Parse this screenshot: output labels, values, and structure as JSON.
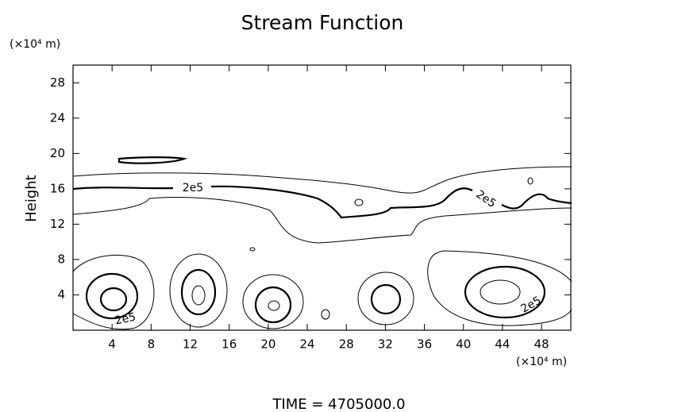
{
  "chart_data": {
    "type": "contour",
    "title": "Stream Function",
    "y_unit": "(×10⁴ m)",
    "ylabel": "Height",
    "x_unit": "(×10⁴ m)",
    "footer": "TIME = 4705000.0",
    "xlim": [
      0,
      51
    ],
    "xticks": [
      4,
      8,
      12,
      16,
      20,
      24,
      28,
      32,
      36,
      40,
      44,
      48
    ],
    "ylim": [
      0,
      30
    ],
    "yticks": [
      4,
      8,
      12,
      16,
      20,
      24,
      28
    ],
    "contour_labels": [
      "2e5",
      "2e5",
      "2e5",
      "2e5"
    ],
    "color": "#000000"
  }
}
